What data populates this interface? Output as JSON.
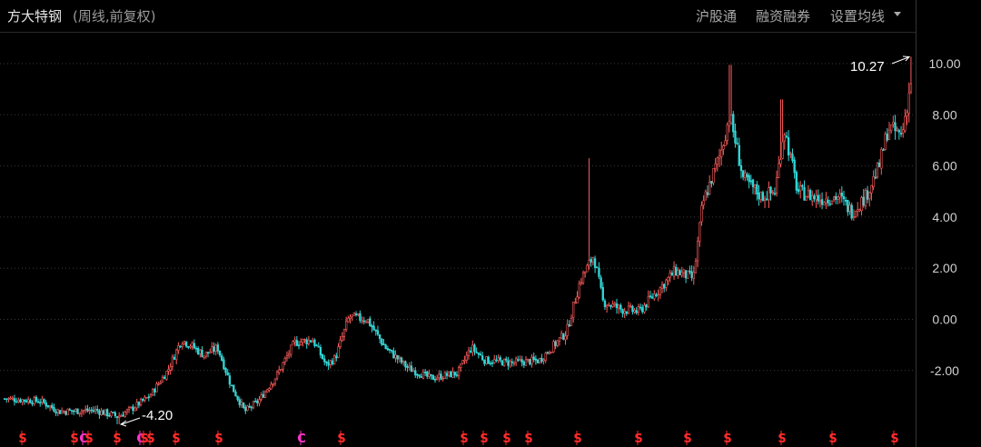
{
  "header": {
    "title": "方大特钢",
    "subtitle": "(周线,前复权)",
    "menu_hgt": "沪股通",
    "menu_margin": "融资融券",
    "menu_ma": "设置均线"
  },
  "colors": {
    "background": "#000000",
    "up": "#ff5c5c",
    "down": "#33d6d6",
    "grid": "#3a3a3a",
    "axis_text": "#d0d0d0",
    "marker_s": "#ff2a2a",
    "marker_c": "#ff33cc"
  },
  "chart_data": {
    "type": "candlestick",
    "y_axis": {
      "min": -3.8,
      "max": 10.6,
      "ticks": [
        "10.00",
        "8.00",
        "6.00",
        "4.00",
        "2.00",
        "0.00",
        "-2.00"
      ]
    },
    "max_label": "10.27",
    "min_label": "-4.20",
    "anchors": [
      [
        0,
        -3.1
      ],
      [
        0.04,
        -3.2
      ],
      [
        0.06,
        -3.6
      ],
      [
        0.1,
        -3.55
      ],
      [
        0.125,
        -3.8
      ],
      [
        0.14,
        -3.5
      ],
      [
        0.16,
        -3.0
      ],
      [
        0.18,
        -2.0
      ],
      [
        0.195,
        -0.8
      ],
      [
        0.205,
        -1.0
      ],
      [
        0.22,
        -1.4
      ],
      [
        0.235,
        -1.1
      ],
      [
        0.25,
        -2.6
      ],
      [
        0.265,
        -3.6
      ],
      [
        0.28,
        -3.2
      ],
      [
        0.3,
        -2.2
      ],
      [
        0.32,
        -0.9
      ],
      [
        0.34,
        -0.8
      ],
      [
        0.355,
        -1.8
      ],
      [
        0.365,
        -1.5
      ],
      [
        0.38,
        0.1
      ],
      [
        0.4,
        0.0
      ],
      [
        0.42,
        -1.1
      ],
      [
        0.445,
        -1.9
      ],
      [
        0.47,
        -2.3
      ],
      [
        0.5,
        -2.1
      ],
      [
        0.515,
        -1.1
      ],
      [
        0.53,
        -1.6
      ],
      [
        0.56,
        -1.7
      ],
      [
        0.59,
        -1.6
      ],
      [
        0.62,
        -0.5
      ],
      [
        0.635,
        1.5
      ],
      [
        0.65,
        2.5
      ],
      [
        0.66,
        0.7
      ],
      [
        0.68,
        0.4
      ],
      [
        0.7,
        0.3
      ],
      [
        0.72,
        1.1
      ],
      [
        0.74,
        1.9
      ],
      [
        0.76,
        1.6
      ],
      [
        0.77,
        4.5
      ],
      [
        0.79,
        6.5
      ],
      [
        0.8,
        8.0
      ],
      [
        0.815,
        5.5
      ],
      [
        0.835,
        4.8
      ],
      [
        0.85,
        5.0
      ],
      [
        0.86,
        7.5
      ],
      [
        0.875,
        5.0
      ],
      [
        0.9,
        4.7
      ],
      [
        0.92,
        4.8
      ],
      [
        0.935,
        4.2
      ],
      [
        0.95,
        4.8
      ],
      [
        0.965,
        6.0
      ],
      [
        0.975,
        7.5
      ],
      [
        0.99,
        7.2
      ],
      [
        1.0,
        9.3
      ]
    ],
    "markers": [
      {
        "label": "S",
        "kind": "s",
        "pos": 0.021
      },
      {
        "label": "S",
        "kind": "s",
        "pos": 0.078
      },
      {
        "label": "C",
        "kind": "c",
        "pos": 0.088
      },
      {
        "label": "S",
        "kind": "s",
        "pos": 0.094
      },
      {
        "label": "S",
        "kind": "s",
        "pos": 0.125
      },
      {
        "label": "C",
        "kind": "c",
        "pos": 0.151
      },
      {
        "label": "S",
        "kind": "s",
        "pos": 0.155
      },
      {
        "label": "S",
        "kind": "s",
        "pos": 0.162
      },
      {
        "label": "S",
        "kind": "s",
        "pos": 0.19
      },
      {
        "label": "S",
        "kind": "s",
        "pos": 0.237
      },
      {
        "label": "C",
        "kind": "c",
        "pos": 0.328
      },
      {
        "label": "S",
        "kind": "s",
        "pos": 0.372
      },
      {
        "label": "S",
        "kind": "s",
        "pos": 0.507
      },
      {
        "label": "S",
        "kind": "s",
        "pos": 0.529
      },
      {
        "label": "S",
        "kind": "s",
        "pos": 0.554
      },
      {
        "label": "S",
        "kind": "s",
        "pos": 0.578
      },
      {
        "label": "S",
        "kind": "s",
        "pos": 0.632
      },
      {
        "label": "S",
        "kind": "s",
        "pos": 0.699
      },
      {
        "label": "S",
        "kind": "s",
        "pos": 0.753
      },
      {
        "label": "S",
        "kind": "s",
        "pos": 0.797
      },
      {
        "label": "S",
        "kind": "s",
        "pos": 0.857
      },
      {
        "label": "S",
        "kind": "s",
        "pos": 0.913
      },
      {
        "label": "S",
        "kind": "s",
        "pos": 0.981
      }
    ]
  }
}
